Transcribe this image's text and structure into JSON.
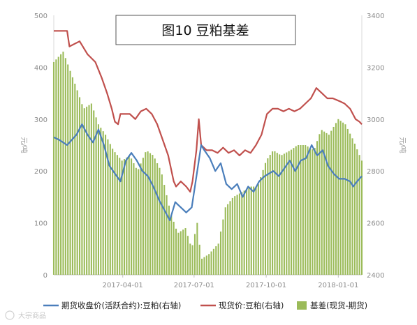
{
  "chart_data": {
    "type": "bar+line",
    "title": "图10 豆粕基差",
    "y_left": {
      "label": "元/吨",
      "min": 0,
      "max": 500,
      "ticks": [
        0,
        100,
        200,
        300,
        400,
        500
      ]
    },
    "y_right": {
      "label": "元/吨",
      "min": 2400,
      "max": 3400,
      "ticks": [
        2400,
        2600,
        2800,
        3000,
        3200,
        3400
      ]
    },
    "x_axis": {
      "start": "2017-01-03",
      "end": "2018-01-31",
      "ticks": [
        "2017-04-01",
        "2017-07-01",
        "2017-10-01",
        "2018-01-01"
      ]
    },
    "series": [
      {
        "name": "期货收盘价(活跃合约):豆粕(右轴)",
        "kind": "line",
        "axis": "right",
        "color": "#4a7ebb",
        "points": [
          [
            "2017-01-03",
            2930
          ],
          [
            "2017-01-10",
            2920
          ],
          [
            "2017-01-20",
            2900
          ],
          [
            "2017-02-01",
            2940
          ],
          [
            "2017-02-08",
            2980
          ],
          [
            "2017-02-15",
            2940
          ],
          [
            "2017-02-22",
            2910
          ],
          [
            "2017-03-01",
            2960
          ],
          [
            "2017-03-08",
            2900
          ],
          [
            "2017-03-15",
            2820
          ],
          [
            "2017-03-22",
            2790
          ],
          [
            "2017-03-29",
            2760
          ],
          [
            "2017-04-05",
            2840
          ],
          [
            "2017-04-12",
            2870
          ],
          [
            "2017-04-19",
            2840
          ],
          [
            "2017-04-26",
            2800
          ],
          [
            "2017-05-03",
            2780
          ],
          [
            "2017-05-10",
            2740
          ],
          [
            "2017-05-17",
            2690
          ],
          [
            "2017-05-24",
            2650
          ],
          [
            "2017-05-31",
            2610
          ],
          [
            "2017-06-07",
            2680
          ],
          [
            "2017-06-14",
            2660
          ],
          [
            "2017-06-21",
            2640
          ],
          [
            "2017-06-28",
            2660
          ],
          [
            "2017-07-05",
            2800
          ],
          [
            "2017-07-10",
            2900
          ],
          [
            "2017-07-14",
            2880
          ],
          [
            "2017-07-21",
            2850
          ],
          [
            "2017-07-28",
            2800
          ],
          [
            "2017-08-04",
            2830
          ],
          [
            "2017-08-11",
            2750
          ],
          [
            "2017-08-18",
            2730
          ],
          [
            "2017-08-25",
            2750
          ],
          [
            "2017-09-01",
            2700
          ],
          [
            "2017-09-08",
            2740
          ],
          [
            "2017-09-15",
            2720
          ],
          [
            "2017-09-22",
            2760
          ],
          [
            "2017-09-29",
            2780
          ],
          [
            "2017-10-10",
            2800
          ],
          [
            "2017-10-17",
            2780
          ],
          [
            "2017-10-24",
            2810
          ],
          [
            "2017-10-31",
            2840
          ],
          [
            "2017-11-07",
            2800
          ],
          [
            "2017-11-14",
            2840
          ],
          [
            "2017-11-21",
            2850
          ],
          [
            "2017-11-28",
            2900
          ],
          [
            "2017-12-05",
            2860
          ],
          [
            "2017-12-12",
            2880
          ],
          [
            "2017-12-19",
            2820
          ],
          [
            "2017-12-26",
            2790
          ],
          [
            "2018-01-02",
            2770
          ],
          [
            "2018-01-09",
            2770
          ],
          [
            "2018-01-16",
            2760
          ],
          [
            "2018-01-20",
            2740
          ],
          [
            "2018-01-25",
            2760
          ],
          [
            "2018-01-31",
            2780
          ]
        ]
      },
      {
        "name": "现货价:豆粕(右轴)",
        "kind": "line",
        "axis": "right",
        "color": "#c0504d",
        "points": [
          [
            "2017-01-03",
            3340
          ],
          [
            "2017-01-20",
            3340
          ],
          [
            "2017-01-23",
            3280
          ],
          [
            "2017-02-05",
            3300
          ],
          [
            "2017-02-15",
            3250
          ],
          [
            "2017-02-25",
            3220
          ],
          [
            "2017-03-05",
            3160
          ],
          [
            "2017-03-12",
            3100
          ],
          [
            "2017-03-18",
            3040
          ],
          [
            "2017-03-22",
            2990
          ],
          [
            "2017-03-26",
            2980
          ],
          [
            "2017-03-29",
            3020
          ],
          [
            "2017-04-10",
            3020
          ],
          [
            "2017-04-17",
            3000
          ],
          [
            "2017-04-24",
            3030
          ],
          [
            "2017-05-01",
            3040
          ],
          [
            "2017-05-08",
            3020
          ],
          [
            "2017-05-15",
            2980
          ],
          [
            "2017-05-22",
            2920
          ],
          [
            "2017-05-29",
            2860
          ],
          [
            "2017-06-05",
            2760
          ],
          [
            "2017-06-08",
            2740
          ],
          [
            "2017-06-14",
            2760
          ],
          [
            "2017-06-21",
            2740
          ],
          [
            "2017-06-26",
            2720
          ],
          [
            "2017-06-29",
            2760
          ],
          [
            "2017-07-04",
            2880
          ],
          [
            "2017-07-07",
            3000
          ],
          [
            "2017-07-10",
            2900
          ],
          [
            "2017-07-17",
            2880
          ],
          [
            "2017-07-24",
            2880
          ],
          [
            "2017-07-31",
            2870
          ],
          [
            "2017-08-07",
            2890
          ],
          [
            "2017-08-14",
            2870
          ],
          [
            "2017-08-21",
            2880
          ],
          [
            "2017-08-28",
            2860
          ],
          [
            "2017-09-04",
            2880
          ],
          [
            "2017-09-11",
            2870
          ],
          [
            "2017-09-18",
            2900
          ],
          [
            "2017-09-25",
            2940
          ],
          [
            "2017-10-02",
            3020
          ],
          [
            "2017-10-09",
            3040
          ],
          [
            "2017-10-16",
            3040
          ],
          [
            "2017-10-23",
            3030
          ],
          [
            "2017-10-30",
            3040
          ],
          [
            "2017-11-06",
            3030
          ],
          [
            "2017-11-13",
            3040
          ],
          [
            "2017-11-20",
            3060
          ],
          [
            "2017-11-27",
            3080
          ],
          [
            "2017-12-04",
            3120
          ],
          [
            "2017-12-11",
            3100
          ],
          [
            "2017-12-18",
            3080
          ],
          [
            "2017-12-25",
            3080
          ],
          [
            "2018-01-02",
            3070
          ],
          [
            "2018-01-09",
            3060
          ],
          [
            "2018-01-16",
            3040
          ],
          [
            "2018-01-23",
            3000
          ],
          [
            "2018-01-28",
            2990
          ],
          [
            "2018-01-31",
            2980
          ]
        ]
      },
      {
        "name": "基差(现货-期货)",
        "kind": "bar",
        "axis": "left",
        "color": "#9bbb59",
        "points": [
          [
            "2017-01-03",
            410
          ],
          [
            "2017-01-15",
            430
          ],
          [
            "2017-02-01",
            360
          ],
          [
            "2017-02-10",
            320
          ],
          [
            "2017-02-20",
            330
          ],
          [
            "2017-03-01",
            290
          ],
          [
            "2017-03-10",
            270
          ],
          [
            "2017-03-20",
            240
          ],
          [
            "2017-03-31",
            220
          ],
          [
            "2017-04-10",
            230
          ],
          [
            "2017-04-20",
            200
          ],
          [
            "2017-05-01",
            240
          ],
          [
            "2017-05-10",
            230
          ],
          [
            "2017-05-20",
            200
          ],
          [
            "2017-06-01",
            120
          ],
          [
            "2017-06-10",
            80
          ],
          [
            "2017-06-20",
            90
          ],
          [
            "2017-06-28",
            50
          ],
          [
            "2017-07-05",
            100
          ],
          [
            "2017-07-10",
            30
          ],
          [
            "2017-07-20",
            40
          ],
          [
            "2017-08-01",
            60
          ],
          [
            "2017-08-10",
            130
          ],
          [
            "2017-08-20",
            150
          ],
          [
            "2017-09-01",
            160
          ],
          [
            "2017-09-10",
            170
          ],
          [
            "2017-09-20",
            170
          ],
          [
            "2017-10-01",
            220
          ],
          [
            "2017-10-10",
            240
          ],
          [
            "2017-10-20",
            230
          ],
          [
            "2017-11-01",
            240
          ],
          [
            "2017-11-10",
            250
          ],
          [
            "2017-11-20",
            250
          ],
          [
            "2017-12-01",
            240
          ],
          [
            "2017-12-10",
            280
          ],
          [
            "2017-12-20",
            270
          ],
          [
            "2018-01-01",
            300
          ],
          [
            "2018-01-10",
            290
          ],
          [
            "2018-01-20",
            260
          ],
          [
            "2018-01-31",
            220
          ]
        ]
      }
    ],
    "legend": {
      "position": "bottom"
    }
  },
  "watermark": {
    "text": "大宗商品"
  }
}
